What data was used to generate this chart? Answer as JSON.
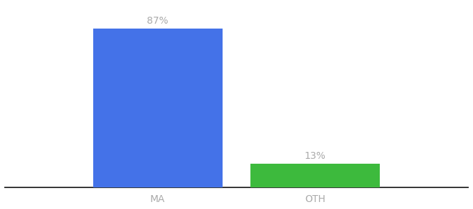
{
  "categories": [
    "MA",
    "OTH"
  ],
  "values": [
    87,
    13
  ],
  "bar_colors": [
    "#4472e8",
    "#3dba3d"
  ],
  "value_labels": [
    "87%",
    "13%"
  ],
  "background_color": "#ffffff",
  "ylim": [
    0,
    100
  ],
  "bar_width": 0.28,
  "x_positions": [
    0.33,
    0.67
  ],
  "xlim": [
    0.0,
    1.0
  ],
  "label_fontsize": 10,
  "tick_fontsize": 10,
  "label_color": "#aaaaaa",
  "axis_line_color": "#111111"
}
